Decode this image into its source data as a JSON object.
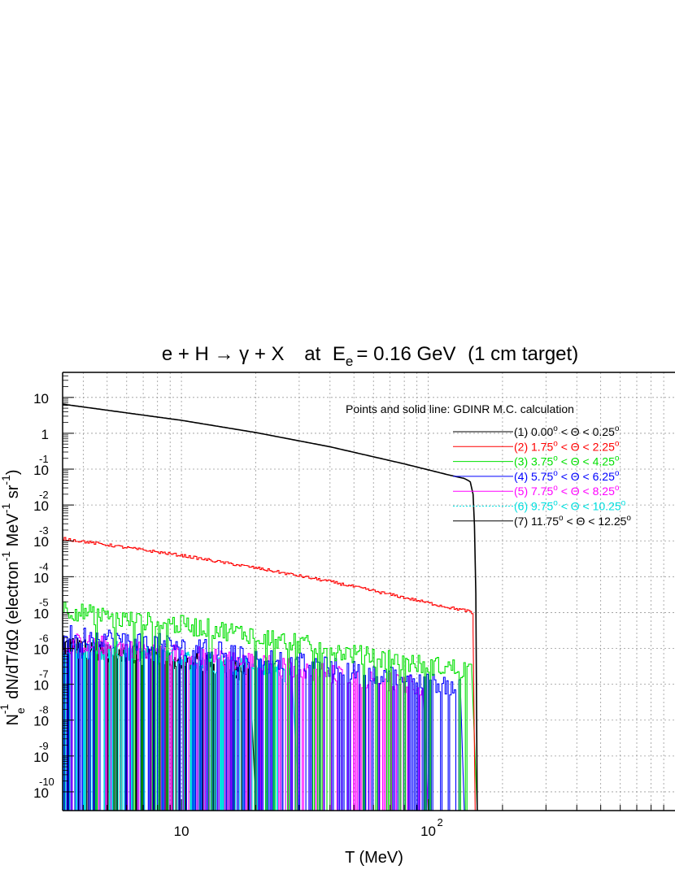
{
  "chart_data": {
    "type": "line",
    "title": {
      "reaction": "e + H → γ + X",
      "at_label": "at",
      "energy_symbol": "E",
      "energy_subscript": "e",
      "energy_value": "= 0.16 GeV",
      "target": "(1 cm target)"
    },
    "xlabel": "T  (MeV)",
    "ylabel": {
      "base": "N",
      "sub": "e",
      "sup": "-1",
      "main": "dN/dT/dΩ  (electron",
      "unit1_sup": "-1",
      "unit1": " MeV",
      "unit2_sup": "-1",
      "unit2": " sr",
      "unit3_sup": "-1",
      "close": ")"
    },
    "x_scale": "log",
    "y_scale": "log",
    "xlim": [
      3.3,
      1000
    ],
    "ylim": [
      3e-11,
      50
    ],
    "grid": true,
    "x_ticks": [
      {
        "value": 10,
        "base": "10",
        "exp": ""
      },
      {
        "value": 100,
        "base": "10",
        "exp": "2"
      }
    ],
    "y_ticks": [
      {
        "value": 10,
        "base": "10",
        "exp": ""
      },
      {
        "value": 1,
        "base": "1",
        "exp": ""
      },
      {
        "value": 0.1,
        "base": "10",
        "exp": "-1"
      },
      {
        "value": 0.01,
        "base": "10",
        "exp": "-2"
      },
      {
        "value": 0.001,
        "base": "10",
        "exp": "-3"
      },
      {
        "value": 0.0001,
        "base": "10",
        "exp": "-4"
      },
      {
        "value": 1e-05,
        "base": "10",
        "exp": "-5"
      },
      {
        "value": 1e-06,
        "base": "10",
        "exp": "-6"
      },
      {
        "value": 1e-07,
        "base": "10",
        "exp": "-7"
      },
      {
        "value": 1e-08,
        "base": "10",
        "exp": "-8"
      },
      {
        "value": 1e-09,
        "base": "10",
        "exp": "-9"
      },
      {
        "value": 1e-10,
        "base": "10",
        "exp": "-10"
      }
    ],
    "legend": {
      "header": "Points and solid line:  GDINR  M.C. calculation",
      "placement": "top-right"
    },
    "series": [
      {
        "name": "(1)   0.00° < Θ <   0.25°",
        "parts": [
          "(1)   0.00",
          " < Θ <   0.25",
          ""
        ],
        "color": "#000000",
        "kind": "smooth",
        "points": [
          [
            3.3,
            6.5
          ],
          [
            5,
            4.4
          ],
          [
            10,
            2.3
          ],
          [
            20,
            1.05
          ],
          [
            40,
            0.42
          ],
          [
            80,
            0.14
          ],
          [
            120,
            0.07
          ],
          [
            140,
            0.055
          ],
          [
            148,
            0.045
          ],
          [
            152,
            0.02
          ],
          [
            155,
            0.001
          ],
          [
            157,
            1e-06
          ],
          [
            158,
            3e-11
          ]
        ]
      },
      {
        "name": "(2)  1.75° < Θ <  2.25°",
        "parts": [
          "(2)  1.75",
          " < Θ <  2.25",
          ""
        ],
        "color": "#ff0000",
        "kind": "noisy",
        "points": [
          [
            3.3,
            0.00115
          ],
          [
            5,
            0.00077
          ],
          [
            10,
            0.00039
          ],
          [
            20,
            0.000175
          ],
          [
            40,
            7.3e-05
          ],
          [
            80,
            2.6e-05
          ],
          [
            120,
            1.4e-05
          ],
          [
            145,
            1.1e-05
          ],
          [
            150,
            9e-06
          ],
          [
            152,
            3e-06
          ],
          [
            155,
            3e-11
          ]
        ]
      },
      {
        "name": "(3)  3.75° < Θ <  4.25°",
        "parts": [
          "(3)  3.75",
          " < Θ <  4.25",
          ""
        ],
        "color": "#00e000",
        "kind": "noisy",
        "points": [
          [
            3.3,
            1.3e-05
          ],
          [
            5,
            7e-06
          ],
          [
            10,
            4.5e-06
          ],
          [
            20,
            2.4e-06
          ],
          [
            40,
            9e-07
          ],
          [
            80,
            4e-07
          ],
          [
            150,
            2.5e-07
          ],
          [
            158,
            3e-11
          ]
        ]
      },
      {
        "name": "(4)  5.75° < Θ <  6.25°",
        "parts": [
          "(4)  5.75",
          " < Θ <  6.25",
          ""
        ],
        "color": "#0000ff",
        "kind": "noisy",
        "points": [
          [
            3.3,
            2.5e-06
          ],
          [
            5,
            2e-06
          ],
          [
            10,
            1.2e-06
          ],
          [
            20,
            6e-07
          ],
          [
            40,
            3e-07
          ],
          [
            80,
            1.5e-07
          ],
          [
            135,
            8e-08
          ],
          [
            140,
            3e-11
          ]
        ]
      },
      {
        "name": "(5)  7.75° < Θ <  8.25°",
        "parts": [
          "(5)  7.75",
          " < Θ <  8.25",
          ""
        ],
        "color": "#ff00ff",
        "kind": "noisy",
        "points": [
          [
            3.3,
            1.5e-06
          ],
          [
            5,
            1.2e-06
          ],
          [
            10,
            7e-07
          ],
          [
            20,
            4e-07
          ],
          [
            40,
            2e-07
          ],
          [
            80,
            1e-07
          ],
          [
            95,
            8e-08
          ],
          [
            100,
            3e-11
          ]
        ]
      },
      {
        "name": "(6)  9.75° < Θ < 10.25°",
        "parts": [
          "(6)  9.75",
          " < Θ < 10.25",
          ""
        ],
        "color": "#00e0e0",
        "kind": "noisy",
        "points": [
          [
            3.3,
            1e-06
          ],
          [
            5,
            9e-07
          ],
          [
            10,
            5e-07
          ],
          [
            20,
            3e-07
          ],
          [
            28,
            2e-07
          ],
          [
            30,
            3e-11
          ]
        ]
      },
      {
        "name": "(7)  11.75° < Θ < 12.25°",
        "parts": [
          "(7)  11.75",
          " < Θ < 12.25",
          ""
        ],
        "color": "#000000",
        "kind": "noisy",
        "points": [
          [
            3.3,
            1.2e-06
          ],
          [
            5,
            8e-07
          ],
          [
            10,
            4.5e-07
          ],
          [
            15,
            3e-07
          ],
          [
            19,
            2e-07
          ],
          [
            20,
            3e-11
          ]
        ]
      }
    ]
  }
}
